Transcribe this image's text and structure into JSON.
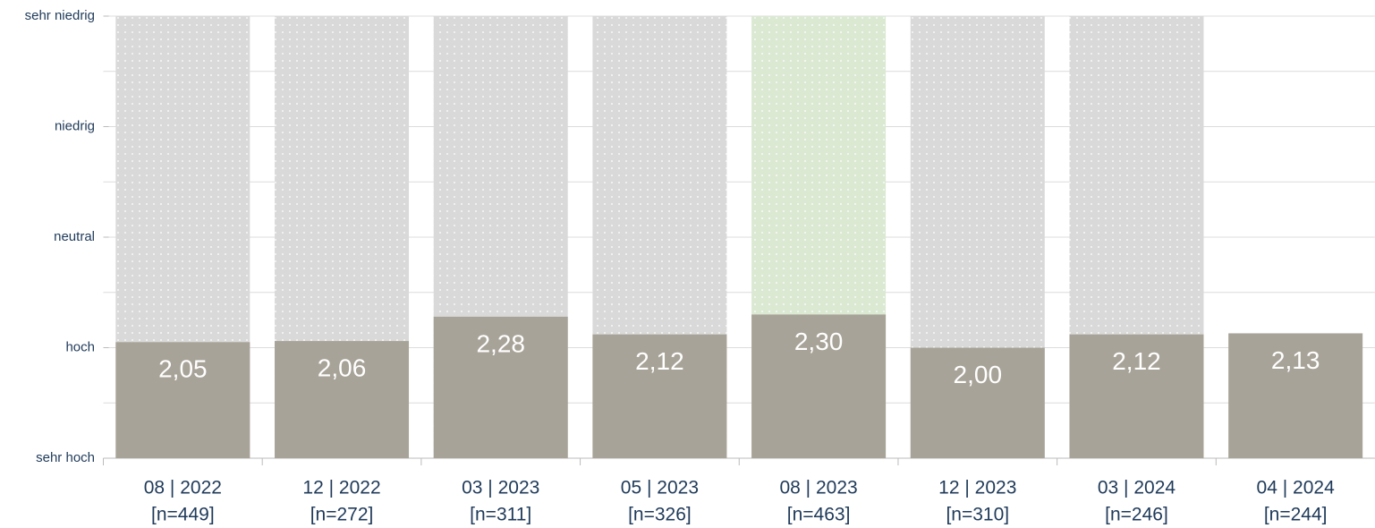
{
  "chart_data": {
    "type": "bar",
    "categories": [
      "08 | 2022",
      "12 | 2022",
      "03 | 2023",
      "05 | 2023",
      "08 | 2023",
      "12 | 2023",
      "03 | 2024",
      "04 | 2024"
    ],
    "sample_sizes": [
      "[n=449]",
      "[n=272]",
      "[n=311]",
      "[n=326]",
      "[n=463]",
      "[n=310]",
      "[n=246]",
      "[n=244]"
    ],
    "values": [
      2.05,
      2.06,
      2.28,
      2.12,
      2.3,
      2.0,
      2.12,
      2.13
    ],
    "value_labels": [
      "2,05",
      "2,06",
      "2,28",
      "2,12",
      "2,30",
      "2,00",
      "2,12",
      "2,13"
    ],
    "color": "#a8a398",
    "band_colors": [
      "#d9d9d9",
      "#d9d9d9",
      "#d9d9d9",
      "#d9d9d9",
      "#dbe9d3",
      "#d9d9d9",
      "#d9d9d9",
      null
    ],
    "ylim": [
      1,
      5
    ],
    "yticks": [
      {
        "value": 1,
        "label": "sehr hoch"
      },
      {
        "value": 2,
        "label": "hoch"
      },
      {
        "value": 3,
        "label": "neutral"
      },
      {
        "value": 4,
        "label": "niedrig"
      },
      {
        "value": 5,
        "label": "sehr niedrig"
      }
    ],
    "minor_yticks": [
      1.5,
      2.5,
      3.5,
      4.5
    ],
    "grid": true
  }
}
